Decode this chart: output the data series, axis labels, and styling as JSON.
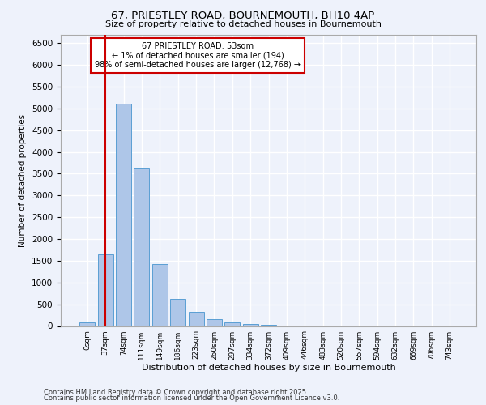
{
  "title1": "67, PRIESTLEY ROAD, BOURNEMOUTH, BH10 4AP",
  "title2": "Size of property relative to detached houses in Bournemouth",
  "xlabel": "Distribution of detached houses by size in Bournemouth",
  "ylabel": "Number of detached properties",
  "footer1": "Contains HM Land Registry data © Crown copyright and database right 2025.",
  "footer2": "Contains public sector information licensed under the Open Government Licence v3.0.",
  "bar_labels": [
    "0sqm",
    "37sqm",
    "74sqm",
    "111sqm",
    "149sqm",
    "186sqm",
    "223sqm",
    "260sqm",
    "297sqm",
    "334sqm",
    "372sqm",
    "409sqm",
    "446sqm",
    "483sqm",
    "520sqm",
    "557sqm",
    "594sqm",
    "632sqm",
    "669sqm",
    "706sqm",
    "743sqm"
  ],
  "bar_values": [
    80,
    1650,
    5100,
    3620,
    1430,
    620,
    320,
    155,
    90,
    55,
    30,
    10,
    0,
    0,
    0,
    0,
    0,
    0,
    0,
    0,
    0
  ],
  "bar_color": "#aec6e8",
  "bar_edge_color": "#5a9fd4",
  "vline_x": 1,
  "vline_color": "#cc0000",
  "ylim": [
    0,
    6700
  ],
  "yticks": [
    0,
    500,
    1000,
    1500,
    2000,
    2500,
    3000,
    3500,
    4000,
    4500,
    5000,
    5500,
    6000,
    6500
  ],
  "annotation_title": "67 PRIESTLEY ROAD: 53sqm",
  "annotation_line1": "← 1% of detached houses are smaller (194)",
  "annotation_line2": "98% of semi-detached houses are larger (12,768) →",
  "annotation_box_color": "#ffffff",
  "annotation_box_edge": "#cc0000",
  "bg_color": "#eef2fb",
  "grid_color": "#ffffff"
}
